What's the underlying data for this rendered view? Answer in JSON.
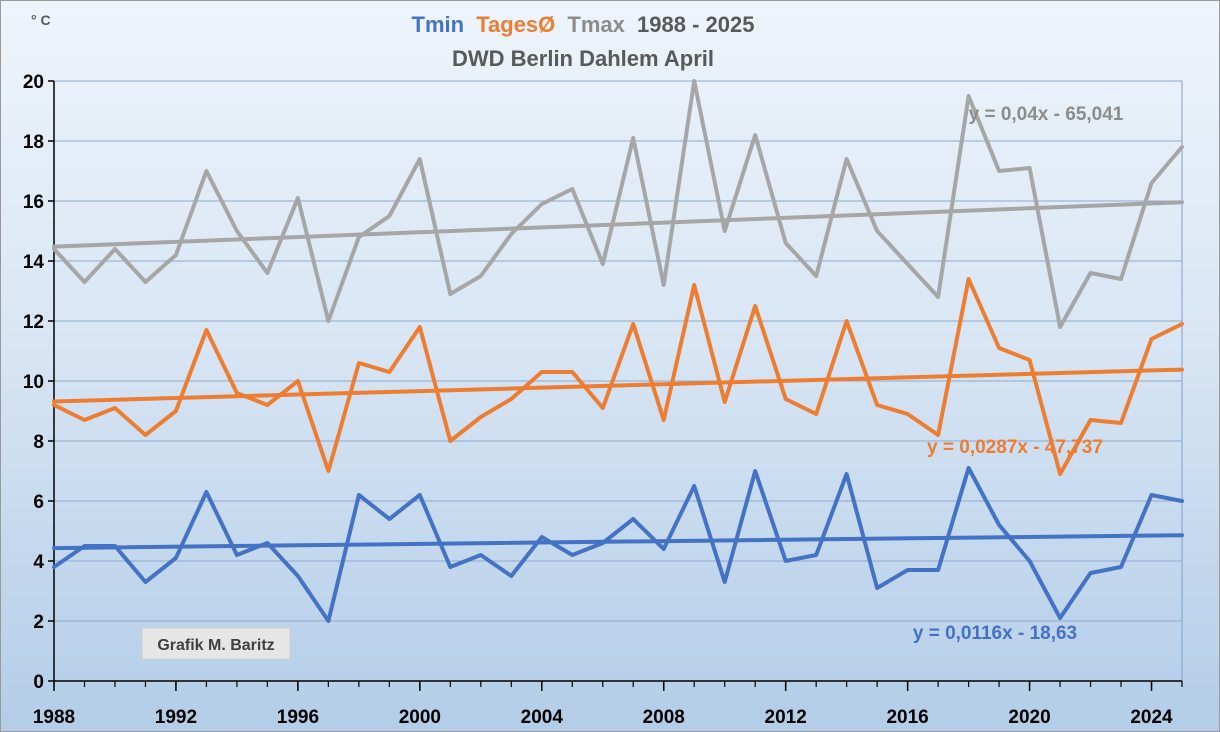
{
  "chart_data": {
    "type": "line",
    "unit_label": "° C",
    "title": {
      "parts": [
        {
          "text": "Tmin",
          "color": "#4472c4"
        },
        {
          "text": "TagesØ",
          "color": "#ed7d31"
        },
        {
          "text": "Tmax",
          "color": "#8c8c8c"
        },
        {
          "text": "1988 - 2025",
          "color": "#595959"
        }
      ],
      "subtitle": "DWD Berlin Dahlem April"
    },
    "x": [
      1988,
      1989,
      1990,
      1991,
      1992,
      1993,
      1994,
      1995,
      1996,
      1997,
      1998,
      1999,
      2000,
      2001,
      2002,
      2003,
      2004,
      2005,
      2006,
      2007,
      2008,
      2009,
      2010,
      2011,
      2012,
      2013,
      2014,
      2015,
      2016,
      2017,
      2018,
      2019,
      2020,
      2021,
      2022,
      2023,
      2024,
      2025
    ],
    "xlim": [
      1988,
      2025
    ],
    "x_ticks": [
      1988,
      1992,
      1996,
      2000,
      2004,
      2008,
      2012,
      2016,
      2020,
      2024
    ],
    "ylim": [
      0,
      20
    ],
    "y_ticks": [
      0,
      2,
      4,
      6,
      8,
      10,
      12,
      14,
      16,
      18,
      20
    ],
    "series": [
      {
        "key": "tmax",
        "color": "#a6a6a6",
        "values": [
          14.4,
          13.3,
          14.4,
          13.3,
          14.2,
          17.0,
          15.0,
          13.6,
          16.1,
          12.0,
          14.8,
          15.5,
          17.4,
          12.9,
          13.5,
          14.9,
          15.9,
          16.4,
          13.9,
          18.1,
          13.2,
          20.0,
          15.0,
          18.2,
          14.6,
          13.5,
          17.4,
          15.0,
          13.9,
          12.8,
          19.5,
          17.0,
          17.1,
          11.8,
          13.6,
          13.4,
          16.6,
          17.8
        ],
        "trend": {
          "slope": 0.04,
          "intercept": -65.041,
          "label": "y = 0,04x - 65,041",
          "label_color": "#8c8c8c",
          "trend_color": "#a6a6a6"
        }
      },
      {
        "key": "tmean",
        "color": "#ed7d31",
        "values": [
          9.2,
          8.7,
          9.1,
          8.2,
          9.0,
          11.7,
          9.6,
          9.2,
          10.0,
          7.0,
          10.6,
          10.3,
          11.8,
          8.0,
          8.8,
          9.4,
          10.3,
          10.3,
          9.1,
          11.9,
          8.7,
          13.2,
          9.3,
          12.5,
          9.4,
          8.9,
          12.0,
          9.2,
          8.9,
          8.2,
          13.4,
          11.1,
          10.7,
          6.9,
          8.7,
          8.6,
          11.4,
          11.9
        ],
        "trend": {
          "slope": 0.0287,
          "intercept": -47.737,
          "label": "y = 0,0287x - 47,737",
          "label_color": "#ed7d31",
          "trend_color": "#ed7d31"
        }
      },
      {
        "key": "tmin",
        "color": "#4472c4",
        "values": [
          3.8,
          4.5,
          4.5,
          3.3,
          4.1,
          6.3,
          4.2,
          4.6,
          3.5,
          2.0,
          6.2,
          5.4,
          6.2,
          3.8,
          4.2,
          3.5,
          4.8,
          4.2,
          4.6,
          5.4,
          4.4,
          6.5,
          3.3,
          7.0,
          4.0,
          4.2,
          6.9,
          3.1,
          3.7,
          3.7,
          7.1,
          5.2,
          4.0,
          2.1,
          3.6,
          3.8,
          6.2,
          6.0
        ],
        "trend": {
          "slope": 0.0116,
          "intercept": -18.63,
          "label": "y = 0,0116x - 18,63",
          "label_color": "#4472c4",
          "trend_color": "#4472c4"
        }
      }
    ],
    "annotation": "Grafik M. Baritz",
    "grid": "horizontal"
  }
}
